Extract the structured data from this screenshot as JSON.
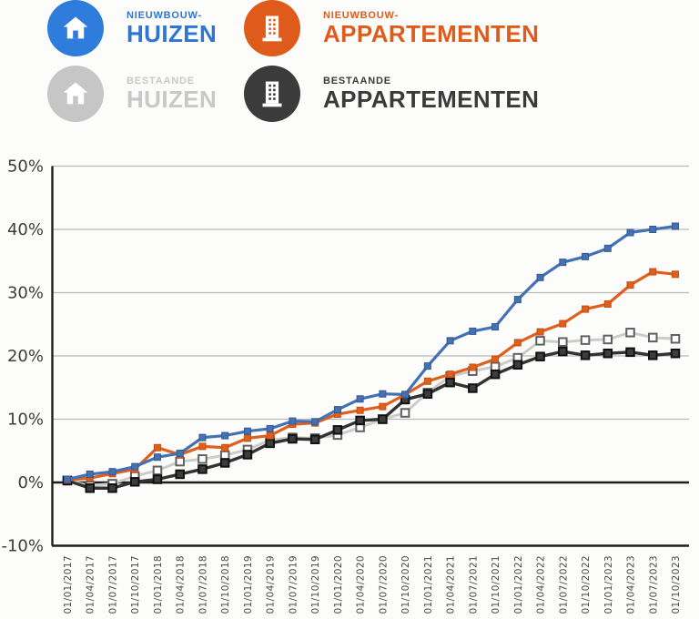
{
  "legend": {
    "items": [
      {
        "id": "nieuwbouw-huizen",
        "label_top": "NIEUWBOUW-",
        "label_main": "HUIZEN",
        "circle_color": "#2e7cdb",
        "text_color": "#2d76d2",
        "icon": "house"
      },
      {
        "id": "nieuwbouw-appartementen",
        "label_top": "NIEUWBOUW-",
        "label_main": "APPARTEMENTEN",
        "circle_color": "#df5b1c",
        "text_color": "#df5b1c",
        "icon": "apartment"
      },
      {
        "id": "bestaande-huizen",
        "label_top": "BESTAANDE",
        "label_main": "HUIZEN",
        "circle_color": "#c6c6c6",
        "text_color": "#c8c8c8",
        "icon": "house"
      },
      {
        "id": "bestaande-appartementen",
        "label_top": "BESTAANDE",
        "label_main": "APPARTEMENTEN",
        "circle_color": "#3b3b3b",
        "text_color": "#3a3a3a",
        "icon": "apartment"
      }
    ]
  },
  "chart_data": {
    "type": "line",
    "grid": true,
    "ylim": [
      -10,
      50
    ],
    "y_ticks": [
      {
        "value": 50,
        "label": "50%"
      },
      {
        "value": 40,
        "label": "40%"
      },
      {
        "value": 30,
        "label": "30%"
      },
      {
        "value": 20,
        "label": "20%"
      },
      {
        "value": 10,
        "label": "10%"
      },
      {
        "value": 0,
        "label": "0%"
      },
      {
        "value": -10,
        "label": "-10%"
      }
    ],
    "emphasized_gridlines": [
      0,
      -10
    ],
    "x_labels": [
      "01/01/2017",
      "01/04/2017",
      "01/07/2017",
      "01/10/2017",
      "01/01/2018",
      "01/04/2018",
      "01/07/2018",
      "01/10/2018",
      "01/01/2019",
      "01/04/2019",
      "01/07/2019",
      "01/10/2019",
      "01/01/2020",
      "01/04/2020",
      "01/07/2020",
      "01/10/2020",
      "01/01/2021",
      "01/04/2021",
      "01/07/2021",
      "01/10/2021",
      "01/01/2022",
      "01/04/2022",
      "01/07/2022",
      "01/10/2022",
      "01/01/2023",
      "01/04/2023",
      "01/07/2023",
      "01/10/2023"
    ],
    "series": [
      {
        "name": "Nieuwbouw-huizen",
        "color": "#4471b3",
        "z": 4,
        "line_width": 3.2,
        "marker": "filled-square",
        "marker_fill": "#4471b3",
        "marker_stroke": "#35598f",
        "marker_size": 7,
        "marker_stroke_width": 1,
        "values": [
          0.5,
          1.3,
          1.7,
          2.5,
          4.0,
          4.6,
          7.1,
          7.4,
          8.1,
          8.5,
          9.7,
          9.6,
          11.5,
          13.2,
          14.0,
          13.9,
          18.4,
          22.4,
          23.9,
          24.6,
          28.9,
          32.4,
          34.8,
          35.7,
          37.0,
          39.5,
          40.0,
          40.5
        ]
      },
      {
        "name": "Nieuwbouw-appartementen",
        "color": "#e05f1d",
        "z": 3,
        "line_width": 3.2,
        "marker": "filled-square",
        "marker_fill": "#e05f1d",
        "marker_stroke": "#c54e12",
        "marker_size": 7,
        "marker_stroke_width": 1,
        "values": [
          0.4,
          0.7,
          1.4,
          2.1,
          5.5,
          4.4,
          5.7,
          5.5,
          7.0,
          7.4,
          9.2,
          9.4,
          10.8,
          11.4,
          12.0,
          13.9,
          16.0,
          17.1,
          18.2,
          19.5,
          22.1,
          23.8,
          25.1,
          27.4,
          28.2,
          31.2,
          33.3,
          32.9
        ]
      },
      {
        "name": "Bestaande huizen",
        "color": "#cccccc",
        "z": 1,
        "line_width": 3.0,
        "marker": "open-square",
        "marker_fill": "#ffffff",
        "marker_stroke": "#606060",
        "marker_size": 8.5,
        "marker_stroke_width": 2,
        "values": [
          0.3,
          -0.5,
          -0.2,
          1.0,
          1.9,
          3.3,
          3.7,
          4.3,
          5.2,
          6.7,
          7.1,
          7.0,
          7.5,
          8.7,
          10.0,
          11.0,
          14.2,
          16.8,
          17.6,
          18.3,
          19.7,
          22.4,
          22.2,
          22.5,
          22.6,
          23.7,
          22.9,
          22.7
        ]
      },
      {
        "name": "Bestaande appartementen",
        "color": "#333333",
        "z": 2,
        "line_width": 3.4,
        "marker": "filled-square",
        "marker_fill": "#3d3d3d",
        "marker_stroke": "#111111",
        "marker_size": 8.5,
        "marker_stroke_width": 2,
        "values": [
          0.3,
          -0.9,
          -0.9,
          0.1,
          0.5,
          1.3,
          2.1,
          3.1,
          4.4,
          6.2,
          6.9,
          6.8,
          8.3,
          9.8,
          10.0,
          13.1,
          14.0,
          15.8,
          14.9,
          17.1,
          18.6,
          19.9,
          20.7,
          20.1,
          20.4,
          20.6,
          20.1,
          20.4
        ]
      }
    ]
  }
}
